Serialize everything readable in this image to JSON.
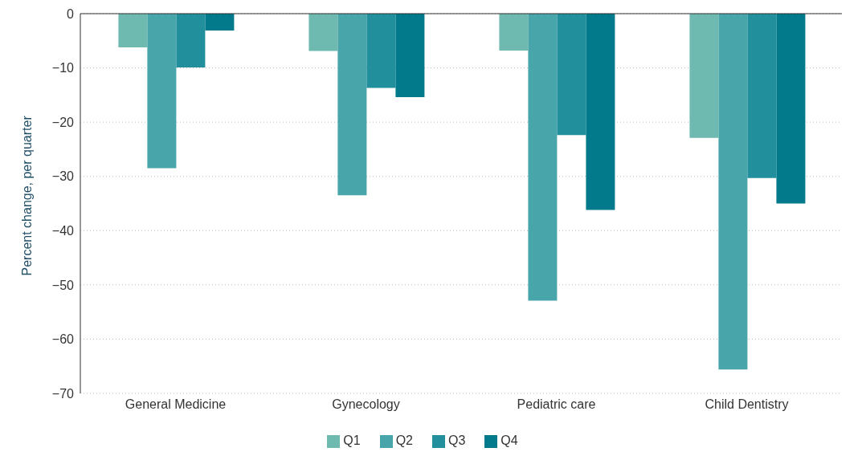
{
  "chart_data": {
    "type": "bar",
    "ylabel": "Percent change, per quarter",
    "categories": [
      "General Medicine",
      "Gynecology",
      "Pediatric care",
      "Child Dentistry"
    ],
    "series": [
      {
        "name": "Q1",
        "color": "#6fbab0",
        "values": [
          -6.2,
          -6.9,
          -6.8,
          -22.9
        ]
      },
      {
        "name": "Q2",
        "color": "#48a5a9",
        "values": [
          -28.5,
          -33.5,
          -52.9,
          -65.6
        ]
      },
      {
        "name": "Q3",
        "color": "#21909c",
        "values": [
          -9.9,
          -13.7,
          -22.4,
          -30.3
        ]
      },
      {
        "name": "Q4",
        "color": "#037a8c",
        "values": [
          -3.1,
          -15.4,
          -36.2,
          -35.0
        ]
      }
    ],
    "ylim": [
      -70,
      0
    ],
    "yticks": [
      0,
      -10,
      -20,
      -30,
      -40,
      -50,
      -60,
      -70
    ],
    "grid": "y",
    "legend": "bottom"
  }
}
